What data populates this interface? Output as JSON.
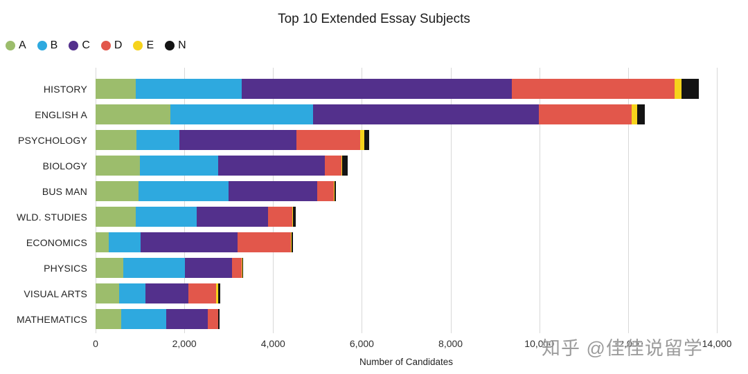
{
  "watermark": "知乎 @佳佳说留学",
  "chart_data": {
    "type": "bar",
    "stacked": true,
    "orientation": "horizontal",
    "title": "Top 10 Extended Essay Subjects",
    "xlabel": "Number of Candidates",
    "xlim": [
      0,
      14000
    ],
    "xticks": [
      0,
      2000,
      4000,
      6000,
      8000,
      10000,
      12000,
      14000
    ],
    "xtick_labels": [
      "0",
      "2,000",
      "4,000",
      "6,000",
      "8,000",
      "10,000",
      "12,000",
      "14,000"
    ],
    "grid": "vertical",
    "legend_position": "top-left",
    "categories": [
      "HISTORY",
      "ENGLISH A",
      "PSYCHOLOGY",
      "BIOLOGY",
      "BUS MAN",
      "WLD. STUDIES",
      "ECONOMICS",
      "PHYSICS",
      "VISUAL ARTS",
      "MATHEMATICS"
    ],
    "series": [
      {
        "name": "A",
        "color": "#9CBD6C",
        "values": [
          900,
          1690,
          920,
          1000,
          970,
          900,
          300,
          620,
          530,
          580
        ]
      },
      {
        "name": "B",
        "color": "#2EA9DF",
        "values": [
          2400,
          3210,
          970,
          1760,
          2030,
          1380,
          720,
          1400,
          590,
          1010
        ]
      },
      {
        "name": "C",
        "color": "#53308C",
        "values": [
          6080,
          5090,
          2640,
          2400,
          2000,
          1600,
          2180,
          1050,
          970,
          940
        ]
      },
      {
        "name": "D",
        "color": "#E2574B",
        "values": [
          3670,
          2090,
          1440,
          380,
          370,
          550,
          1200,
          230,
          620,
          230
        ]
      },
      {
        "name": "E",
        "color": "#F6D31C",
        "values": [
          150,
          130,
          80,
          20,
          20,
          20,
          10,
          10,
          60,
          10
        ]
      },
      {
        "name": "N",
        "color": "#141414",
        "values": [
          400,
          170,
          120,
          120,
          30,
          60,
          40,
          20,
          40,
          30
        ]
      }
    ],
    "totals": [
      13600,
      12380,
      6170,
      5680,
      5420,
      4510,
      4450,
      3330,
      2810,
      2800
    ]
  }
}
